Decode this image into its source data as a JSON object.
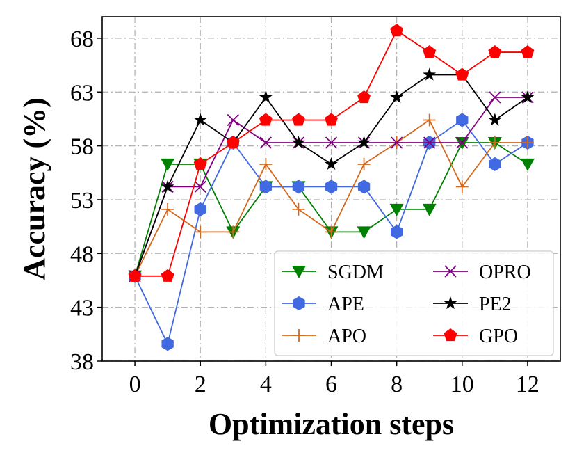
{
  "chart_data": {
    "type": "line",
    "title": "",
    "xlabel": "Optimization steps",
    "ylabel": "Accuracy (%)",
    "xlim": [
      -1,
      13
    ],
    "ylim": [
      38,
      70
    ],
    "xticks": [
      0,
      2,
      4,
      6,
      8,
      10,
      12
    ],
    "yticks": [
      38,
      43,
      48,
      53,
      58,
      63,
      68
    ],
    "grid": true,
    "legend": {
      "placement": "lower-right",
      "columns": 2
    },
    "x": [
      0,
      1,
      2,
      3,
      4,
      5,
      6,
      7,
      8,
      9,
      10,
      11,
      12
    ],
    "series": [
      {
        "name": "SGDM",
        "color": "#008000",
        "marker": "triangle-down",
        "values": [
          45.9,
          56.3,
          56.3,
          50.0,
          54.2,
          54.2,
          50.0,
          50.0,
          52.1,
          52.1,
          58.3,
          58.3,
          56.3
        ]
      },
      {
        "name": "APE",
        "color": "#4169e1",
        "marker": "hexagon",
        "values": [
          45.9,
          39.6,
          52.1,
          58.3,
          54.2,
          54.2,
          54.2,
          54.2,
          50.0,
          58.3,
          60.4,
          56.3,
          58.3
        ]
      },
      {
        "name": "APO",
        "color": "#d2691e",
        "marker": "plus",
        "values": [
          45.9,
          52.1,
          50.0,
          50.0,
          56.3,
          52.1,
          50.0,
          56.3,
          58.3,
          60.4,
          54.2,
          58.3,
          58.3
        ]
      },
      {
        "name": "OPRO",
        "color": "#800080",
        "marker": "x",
        "values": [
          45.9,
          54.2,
          54.2,
          60.4,
          58.3,
          58.3,
          58.3,
          58.3,
          58.3,
          58.3,
          58.3,
          62.5,
          62.5
        ]
      },
      {
        "name": "PE2",
        "color": "#000000",
        "marker": "star",
        "values": [
          45.9,
          54.2,
          60.4,
          58.3,
          62.5,
          58.3,
          56.3,
          58.3,
          62.5,
          64.6,
          64.6,
          60.4,
          62.5
        ]
      },
      {
        "name": "GPO",
        "color": "#ff0000",
        "marker": "pentagon",
        "values": [
          45.9,
          45.9,
          56.3,
          58.3,
          60.4,
          60.4,
          60.4,
          62.5,
          68.7,
          66.7,
          64.6,
          66.7,
          66.7
        ]
      }
    ]
  }
}
